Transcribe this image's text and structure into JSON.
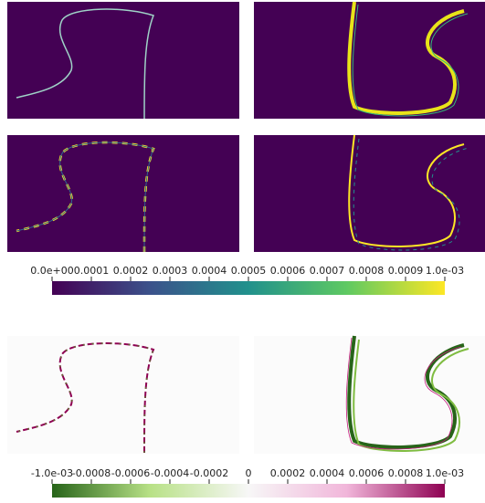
{
  "chart_data": [
    {
      "type": "colorbar",
      "colormap": "viridis",
      "xlim": [
        0,
        0.001
      ],
      "xticks": [
        {
          "value": 0,
          "label": "0.0e+00"
        },
        0.0001,
        0.0002,
        0.0003,
        0.0004,
        0.0005,
        0.0006,
        0.0007,
        0.0008,
        0.0009,
        {
          "value": 0.001,
          "label": "1.0e-03"
        }
      ]
    },
    {
      "type": "colorbar",
      "colormap": "PiYG",
      "xlim": [
        -0.001,
        0.001
      ],
      "xticks": [
        {
          "value": -0.001,
          "label": "-1.0e-03"
        },
        -0.0008,
        -0.0006,
        -0.0004,
        -0.0002,
        0,
        0.0002,
        0.0004,
        0.0006,
        0.0008,
        {
          "value": 0.001,
          "label": "1.0e-03"
        }
      ]
    }
  ]
}
